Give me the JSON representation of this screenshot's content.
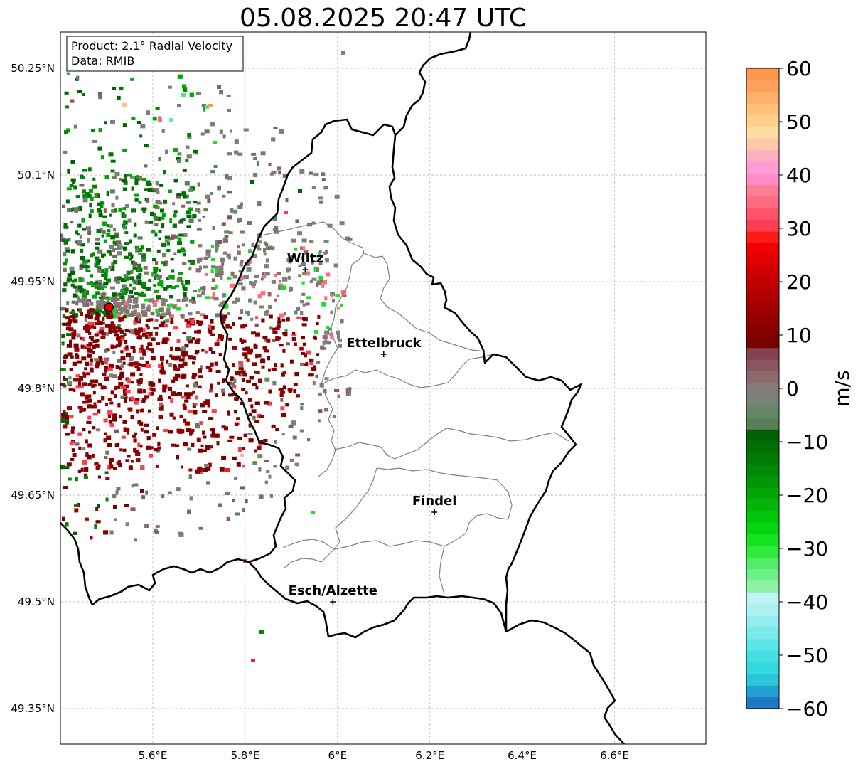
{
  "title": "05.08.2025 20:47 UTC",
  "info_box": {
    "product": "Product: 2.1° Radial Velocity",
    "data": "Data: RMIB"
  },
  "axes": {
    "lon_ticks": [
      {
        "value": 5.6,
        "label": "5.6°E"
      },
      {
        "value": 5.8,
        "label": "5.8°E"
      },
      {
        "value": 6.0,
        "label": "6°E"
      },
      {
        "value": 6.2,
        "label": "6.2°E"
      },
      {
        "value": 6.4,
        "label": "6.4°E"
      },
      {
        "value": 6.6,
        "label": "6.6°E"
      }
    ],
    "lat_ticks": [
      {
        "value": 50.25,
        "label": "50.25°N"
      },
      {
        "value": 50.1,
        "label": "50.1°N"
      },
      {
        "value": 49.95,
        "label": "49.95°N"
      },
      {
        "value": 49.8,
        "label": "49.8°N"
      },
      {
        "value": 49.65,
        "label": "49.65°N"
      },
      {
        "value": 49.5,
        "label": "49.5°N"
      },
      {
        "value": 49.35,
        "label": "49.35°N"
      }
    ],
    "lon_range": [
      5.4,
      6.8
    ],
    "lat_range": [
      49.3,
      50.3
    ],
    "grid": true
  },
  "cities": [
    {
      "name": "Wiltz",
      "lon": 5.93,
      "lat": 49.967
    },
    {
      "name": "Ettelbruck",
      "lon": 6.1,
      "lat": 49.848
    },
    {
      "name": "Findel",
      "lon": 6.21,
      "lat": 49.626
    },
    {
      "name": "Esch/Alzette",
      "lon": 5.99,
      "lat": 49.5
    }
  ],
  "radar_site": {
    "lon": 5.505,
    "lat": 49.914
  },
  "colorbar": {
    "unit": "m/s",
    "min": -60,
    "max": 60,
    "ticks": [
      "60",
      "50",
      "40",
      "30",
      "20",
      "10",
      "0",
      "−10",
      "−20",
      "−30",
      "−40",
      "−50",
      "−60"
    ],
    "tick_values": [
      60,
      50,
      40,
      30,
      20,
      10,
      0,
      -10,
      -20,
      -30,
      -40,
      -50,
      -60
    ],
    "colors": [
      "#1f78c8",
      "#23a0d2",
      "#2cc6d8",
      "#33dbe0",
      "#45e0e4",
      "#5de6e8",
      "#7ae9ec",
      "#95ecef",
      "#aef0f0",
      "#bdf3f3",
      "#8ef2a8",
      "#6df08a",
      "#50ed68",
      "#2fea3c",
      "#12e51f",
      "#05d510",
      "#03c40c",
      "#02b50a",
      "#02a508",
      "#019507",
      "#018806",
      "#017a05",
      "#016e04",
      "#006303",
      "#5a7f5a",
      "#658766",
      "#788378",
      "#857a7a",
      "#8b6a6e",
      "#885560",
      "#844150",
      "#7a0000",
      "#870000",
      "#940000",
      "#a20000",
      "#b00000",
      "#bf0000",
      "#cf0000",
      "#e00000",
      "#f20000",
      "#ff1a1a",
      "#ff3d52",
      "#ff5468",
      "#ff6a80",
      "#ff7d95",
      "#ff8cc8",
      "#ff9dd4",
      "#ffb0c0",
      "#ffc8a8",
      "#ffdca0",
      "#ffd08a",
      "#ffc07a",
      "#ffb06a",
      "#ffa05c",
      "#ff9650"
    ]
  },
  "colors": {
    "border_country": "#000000",
    "border_canton": "#808080",
    "grid": "#b0b0b0",
    "radar_site_fill": "#e00000",
    "receding": "#7a0000",
    "approaching": "#006303",
    "near_zero": "#857a7a"
  }
}
